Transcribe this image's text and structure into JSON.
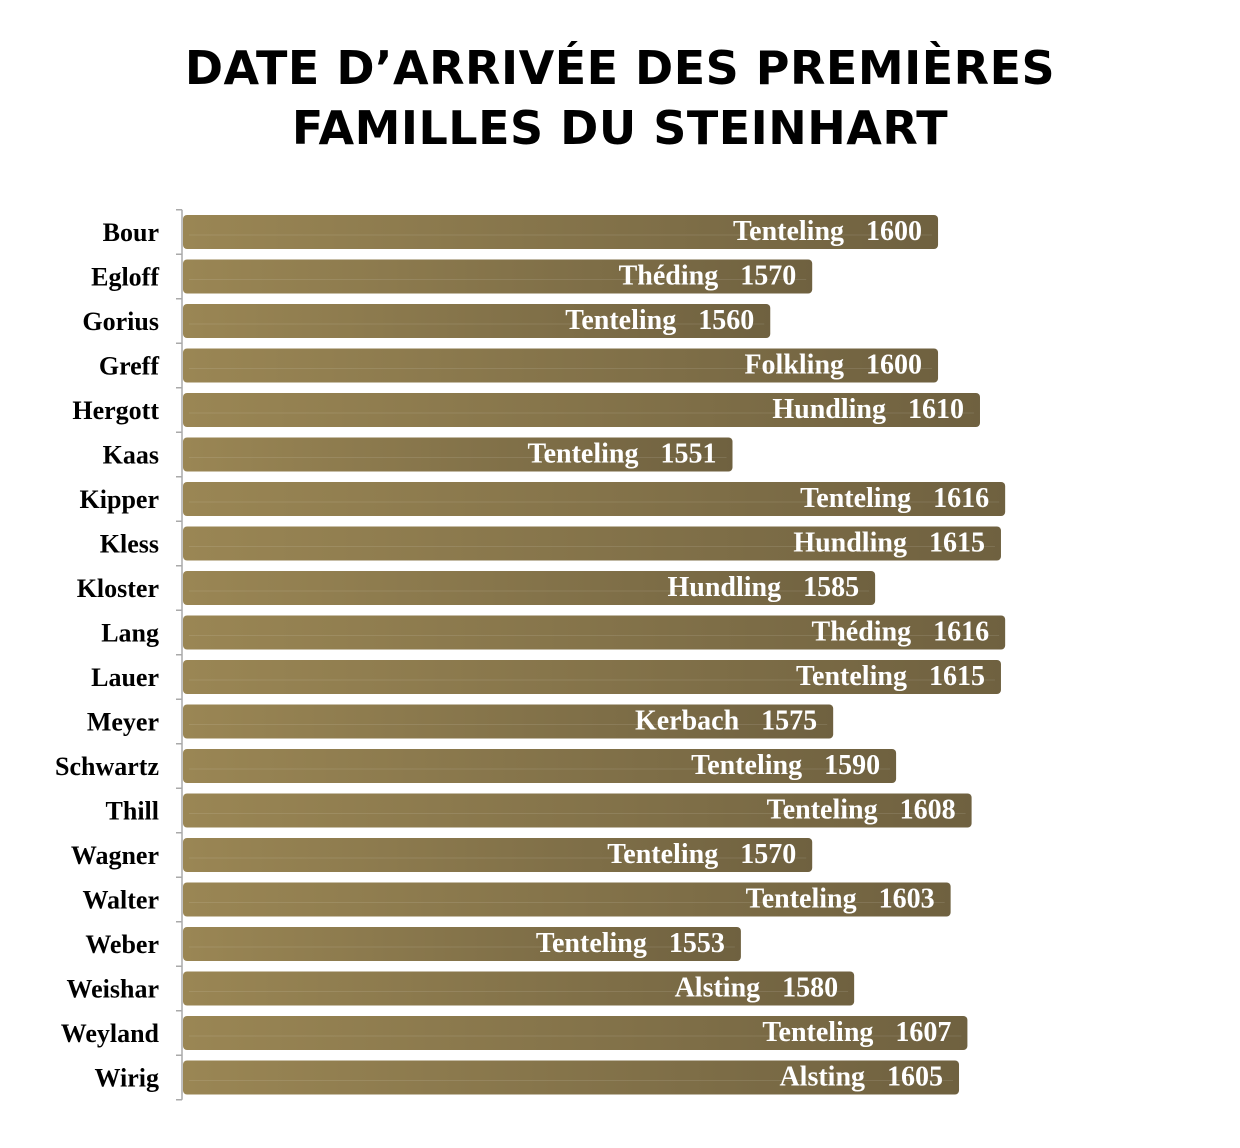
{
  "title_lines": [
    "DATE D’ARRIVÉE DES PREMIÈRES",
    "FAMILLES DU STEINHART"
  ],
  "colors": {
    "bar_start": "#9a8654",
    "bar_end": "#6f6140",
    "label": "#ffffff",
    "axis": "#aaaaaa"
  },
  "chart_data": {
    "type": "bar",
    "orientation": "horizontal",
    "title": "DATE D’ARRIVÉE DES PREMIÈRES FAMILLES DU STEINHART",
    "xlim": [
      1420,
      1646
    ],
    "categories": [
      "Bour",
      "Egloff",
      "Gorius",
      "Greff",
      "Hergott",
      "Kaas",
      "Kipper",
      "Kless",
      "Kloster",
      "Lang",
      "Lauer",
      "Meyer",
      "Schwartz",
      "Thill",
      "Wagner",
      "Walter",
      "Weber",
      "Weishar",
      "Weyland",
      "Wirig"
    ],
    "values": [
      1600,
      1570,
      1560,
      1600,
      1610,
      1551,
      1616,
      1615,
      1585,
      1616,
      1615,
      1575,
      1590,
      1608,
      1570,
      1603,
      1553,
      1580,
      1607,
      1605
    ],
    "places": [
      "Tenteling",
      "Théding",
      "Tenteling",
      "Folkling",
      "Hundling",
      "Tenteling",
      "Tenteling",
      "Hundling",
      "Hundling",
      "Théding",
      "Tenteling",
      "Kerbach",
      "Tenteling",
      "Tenteling",
      "Tenteling",
      "Tenteling",
      "Tenteling",
      "Alsting",
      "Tenteling",
      "Alsting"
    ]
  }
}
